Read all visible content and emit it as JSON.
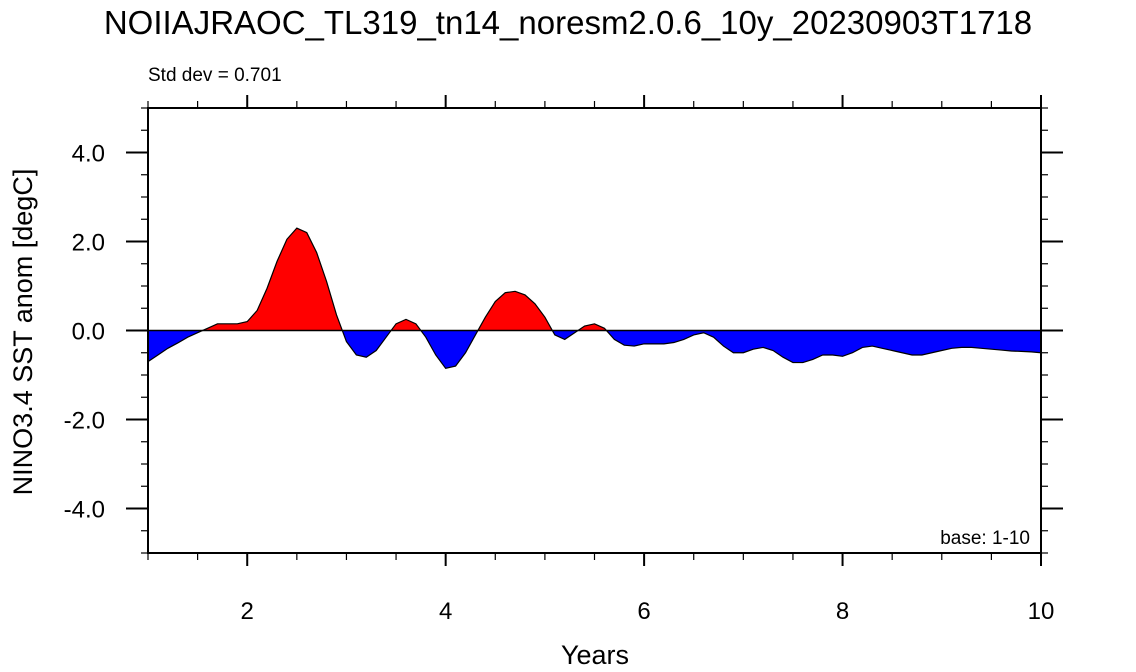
{
  "chart_data": {
    "type": "area",
    "title": "NOIIAJRAOC_TL319_tn14_noresm2.0.6_10y_20230903T1718",
    "xlabel": "Years",
    "ylabel": "NINO3.4 SST anom [degC]",
    "left_annotation": "Std dev = 0.701",
    "right_annotation": "base: 1-10",
    "xlim": [
      1,
      10
    ],
    "ylim": [
      -5,
      5
    ],
    "x_ticks": [
      2,
      4,
      6,
      8,
      10
    ],
    "x_tick_labels": [
      "2",
      "4",
      "6",
      "8",
      "10"
    ],
    "y_ticks": [
      -4,
      -2,
      0,
      2,
      4
    ],
    "y_tick_labels": [
      "-4.0",
      "-2.0",
      "0.0",
      "2.0",
      "4.0"
    ],
    "positive_color": "#ff0000",
    "negative_color": "#0000ff",
    "grid": false,
    "series": [
      {
        "x": [
          1.0,
          1.1,
          1.2,
          1.3,
          1.4,
          1.5,
          1.6,
          1.7,
          1.8,
          1.9,
          2.0,
          2.1,
          2.2,
          2.3,
          2.4,
          2.5,
          2.6,
          2.7,
          2.8,
          2.9,
          3.0,
          3.1,
          3.2,
          3.3,
          3.4,
          3.5,
          3.6,
          3.7,
          3.8,
          3.9,
          4.0,
          4.1,
          4.2,
          4.3,
          4.4,
          4.5,
          4.6,
          4.7,
          4.8,
          4.9,
          5.0,
          5.1,
          5.2,
          5.3,
          5.4,
          5.5,
          5.6,
          5.7,
          5.8,
          5.9,
          6.0,
          6.1,
          6.2,
          6.3,
          6.4,
          6.5,
          6.6,
          6.7,
          6.8,
          6.9,
          7.0,
          7.1,
          7.2,
          7.3,
          7.4,
          7.5,
          7.6,
          7.7,
          7.8,
          7.9,
          8.0,
          8.1,
          8.2,
          8.3,
          8.4,
          8.5,
          8.6,
          8.7,
          8.8,
          8.9,
          9.0,
          9.1,
          9.2,
          9.3,
          9.4,
          9.5,
          9.6,
          9.7,
          9.8,
          9.9,
          10.0
        ],
        "y": [
          -0.7,
          -0.55,
          -0.4,
          -0.28,
          -0.15,
          -0.05,
          0.05,
          0.15,
          0.15,
          0.15,
          0.2,
          0.45,
          0.95,
          1.55,
          2.05,
          2.3,
          2.2,
          1.75,
          1.1,
          0.35,
          -0.25,
          -0.55,
          -0.6,
          -0.45,
          -0.15,
          0.15,
          0.25,
          0.15,
          -0.15,
          -0.55,
          -0.85,
          -0.8,
          -0.5,
          -0.1,
          0.3,
          0.65,
          0.85,
          0.88,
          0.8,
          0.6,
          0.3,
          -0.1,
          -0.2,
          -0.05,
          0.1,
          0.15,
          0.05,
          -0.2,
          -0.33,
          -0.35,
          -0.3,
          -0.3,
          -0.3,
          -0.27,
          -0.2,
          -0.1,
          -0.05,
          -0.15,
          -0.35,
          -0.5,
          -0.5,
          -0.42,
          -0.38,
          -0.45,
          -0.6,
          -0.72,
          -0.72,
          -0.65,
          -0.55,
          -0.55,
          -0.58,
          -0.5,
          -0.38,
          -0.35,
          -0.4,
          -0.45,
          -0.5,
          -0.55,
          -0.55,
          -0.5,
          -0.45,
          -0.4,
          -0.38,
          -0.38,
          -0.4,
          -0.42,
          -0.44,
          -0.46,
          -0.47,
          -0.48,
          -0.5
        ]
      }
    ]
  }
}
